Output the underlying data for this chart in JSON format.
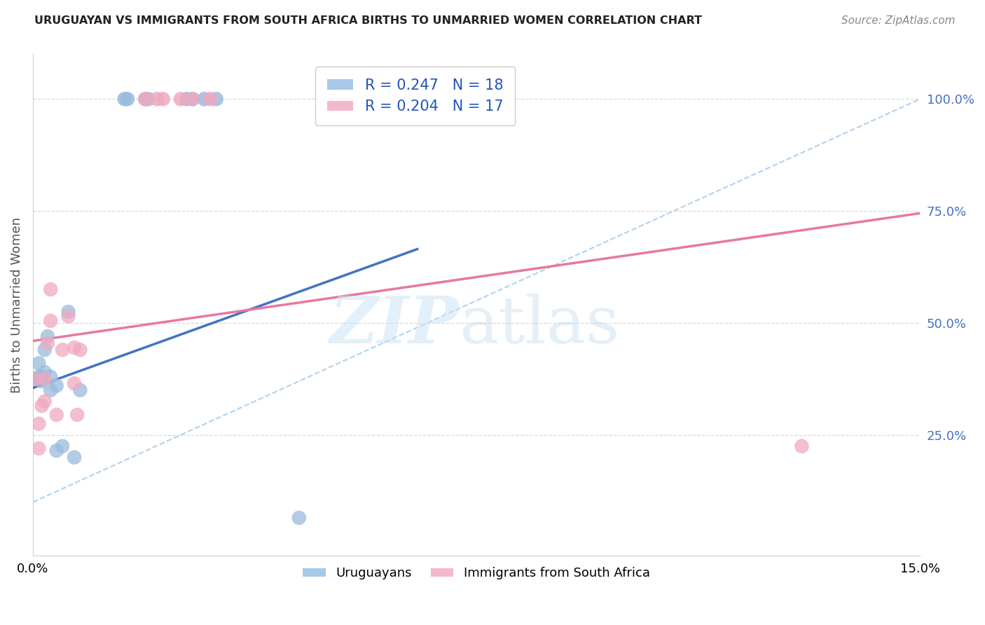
{
  "title": "URUGUAYAN VS IMMIGRANTS FROM SOUTH AFRICA BIRTHS TO UNMARRIED WOMEN CORRELATION CHART",
  "source": "Source: ZipAtlas.com",
  "ylabel": "Births to Unmarried Women",
  "yticks": [
    "25.0%",
    "50.0%",
    "75.0%",
    "100.0%"
  ],
  "ytick_vals": [
    0.25,
    0.5,
    0.75,
    1.0
  ],
  "legend_bottom": [
    "Uruguayans",
    "Immigrants from South Africa"
  ],
  "uruguayan_x": [
    0.0005,
    0.0008,
    0.001,
    0.001,
    0.0015,
    0.0015,
    0.002,
    0.002,
    0.0025,
    0.003,
    0.003,
    0.004,
    0.004,
    0.005,
    0.006,
    0.007,
    0.008,
    0.045
  ],
  "uruguayan_y": [
    0.375,
    0.375,
    0.38,
    0.41,
    0.37,
    0.38,
    0.44,
    0.39,
    0.47,
    0.38,
    0.35,
    0.215,
    0.36,
    0.225,
    0.525,
    0.2,
    0.35,
    0.065
  ],
  "sa_x": [
    0.0003,
    0.001,
    0.001,
    0.0015,
    0.002,
    0.002,
    0.0025,
    0.003,
    0.003,
    0.004,
    0.005,
    0.006,
    0.007,
    0.007,
    0.0075,
    0.008,
    0.13
  ],
  "sa_y": [
    0.375,
    0.275,
    0.22,
    0.315,
    0.325,
    0.375,
    0.455,
    0.505,
    0.575,
    0.295,
    0.44,
    0.515,
    0.365,
    0.445,
    0.295,
    0.44,
    0.225
  ],
  "blue_line_x": [
    0.0,
    0.065
  ],
  "blue_line_y": [
    0.355,
    0.665
  ],
  "pink_line_x": [
    0.0,
    0.15
  ],
  "pink_line_y": [
    0.46,
    0.745
  ],
  "diag_line_x": [
    0.0,
    0.15
  ],
  "diag_line_y": [
    0.1,
    1.0
  ],
  "top_dots_blue_x": [
    0.0155,
    0.016,
    0.019,
    0.0195,
    0.026,
    0.027,
    0.029,
    0.031
  ],
  "top_dots_pink_x": [
    0.019,
    0.021,
    0.022,
    0.025,
    0.027,
    0.03
  ],
  "blue_color": "#a8c8e8",
  "pink_color": "#f4b8cc",
  "blue_scatter_color": "#99bbdd",
  "pink_scatter_color": "#f0a8c0",
  "blue_line_color": "#4472c4",
  "pink_line_color": "#e878a0",
  "diag_color": "#aaccee",
  "background": "#ffffff",
  "grid_color": "#d8d8d8",
  "xlim": [
    0,
    0.15
  ],
  "ylim": [
    -0.02,
    1.1
  ]
}
